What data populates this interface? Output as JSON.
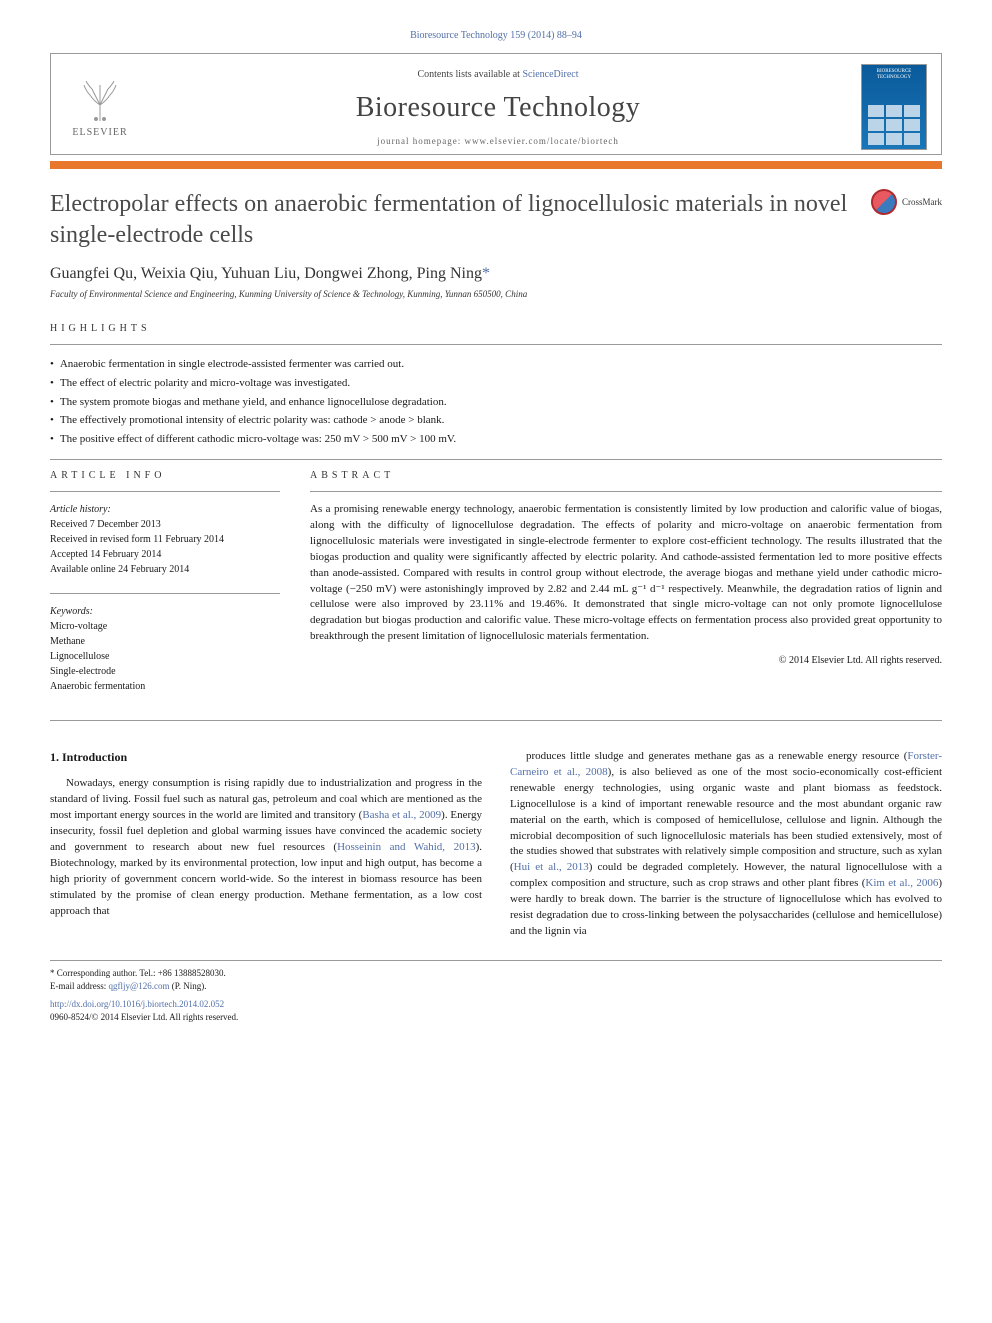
{
  "journal_ref": "Bioresource Technology 159 (2014) 88–94",
  "header": {
    "contents_text": "Contents lists available at ",
    "contents_link": "ScienceDirect",
    "journal_name": "Bioresource Technology",
    "homepage_text": "journal homepage: www.elsevier.com/locate/biortech",
    "publisher": "ELSEVIER",
    "cover_title": "BIORESOURCE TECHNOLOGY"
  },
  "crossmark": "CrossMark",
  "article": {
    "title": "Electropolar effects on anaerobic fermentation of lignocellulosic materials in novel single-electrode cells",
    "authors": "Guangfei Qu, Weixia Qiu, Yuhuan Liu, Dongwei Zhong, Ping Ning",
    "corr_marker": "*",
    "affiliation": "Faculty of Environmental Science and Engineering, Kunming University of Science & Technology, Kunming, Yunnan 650500, China"
  },
  "highlights": {
    "label": "HIGHLIGHTS",
    "items": [
      "Anaerobic fermentation in single electrode-assisted fermenter was carried out.",
      "The effect of electric polarity and micro-voltage was investigated.",
      "The system promote biogas and methane yield, and enhance lignocellulose degradation.",
      "The effectively promotional intensity of electric polarity was: cathode > anode > blank.",
      "The positive effect of different cathodic micro-voltage was: 250 mV > 500 mV > 100 mV."
    ]
  },
  "article_info": {
    "label": "ARTICLE INFO",
    "history_label": "Article history:",
    "history": [
      "Received 7 December 2013",
      "Received in revised form 11 February 2014",
      "Accepted 14 February 2014",
      "Available online 24 February 2014"
    ],
    "keywords_label": "Keywords:",
    "keywords": [
      "Micro-voltage",
      "Methane",
      "Lignocellulose",
      "Single-electrode",
      "Anaerobic fermentation"
    ]
  },
  "abstract": {
    "label": "ABSTRACT",
    "text": "As a promising renewable energy technology, anaerobic fermentation is consistently limited by low production and calorific value of biogas, along with the difficulty of lignocellulose degradation. The effects of polarity and micro-voltage on anaerobic fermentation from lignocellulosic materials were investigated in single-electrode fermenter to explore cost-efficient technology. The results illustrated that the biogas production and quality were significantly affected by electric polarity. And cathode-assisted fermentation led to more positive effects than anode-assisted. Compared with results in control group without electrode, the average biogas and methane yield under cathodic micro-voltage (−250 mV) were astonishingly improved by 2.82 and 2.44 mL g⁻¹ d⁻¹ respectively. Meanwhile, the degradation ratios of lignin and cellulose were also improved by 23.11% and 19.46%. It demonstrated that single micro-voltage can not only promote lignocellulose degradation but biogas production and calorific value. These micro-voltage effects on fermentation process also provided great opportunity to breakthrough the present limitation of lignocellulosic materials fermentation.",
    "copyright": "© 2014 Elsevier Ltd. All rights reserved."
  },
  "body": {
    "intro_heading": "1. Introduction",
    "col1": "Nowadays, energy consumption is rising rapidly due to industrialization and progress in the standard of living. Fossil fuel such as natural gas, petroleum and coal which are mentioned as the most important energy sources in the world are limited and transitory (Basha et al., 2009). Energy insecurity, fossil fuel depletion and global warming issues have convinced the academic society and government to research about new fuel resources (Hosseinin and Wahid, 2013). Biotechnology, marked by its environmental protection, low input and high output, has become a high priority of government concern world-wide. So the interest in biomass resource has been stimulated by the promise of clean energy production. Methane fermentation, as a low cost approach that",
    "col2": "produces little sludge and generates methane gas as a renewable energy resource (Forster-Carneiro et al., 2008), is also believed as one of the most socio-economically cost-efficient renewable energy technologies, using organic waste and plant biomass as feedstock. Lignocellulose is a kind of important renewable resource and the most abundant organic raw material on the earth, which is composed of hemicellulose, cellulose and lignin. Although the microbial decomposition of such lignocellulosic materials has been studied extensively, most of the studies showed that substrates with relatively simple composition and structure, such as xylan (Hui et al., 2013) could be degraded completely. However, the natural lignocellulose with a complex composition and structure, such as crop straws and other plant fibres (Kim et al., 2006) were hardly to break down. The barrier is the structure of lignocellulose which has evolved to resist degradation due to cross-linking between the polysaccharides (cellulose and hemicellulose) and the lignin via",
    "refs": {
      "r1": "Basha et al., 2009",
      "r2": "Hosseinin and Wahid, 2013",
      "r3": "Forster-Carneiro et al., 2008",
      "r4": "Hui et al., 2013",
      "r5": "Kim et al., 2006"
    }
  },
  "footer": {
    "corr_label": "* Corresponding author. Tel.: +86 13888528030.",
    "email_label": "E-mail address: ",
    "email": "qgfljy@126.com",
    "email_suffix": " (P. Ning).",
    "doi": "http://dx.doi.org/10.1016/j.biortech.2014.02.052",
    "issn": "0960-8524/© 2014 Elsevier Ltd. All rights reserved."
  }
}
